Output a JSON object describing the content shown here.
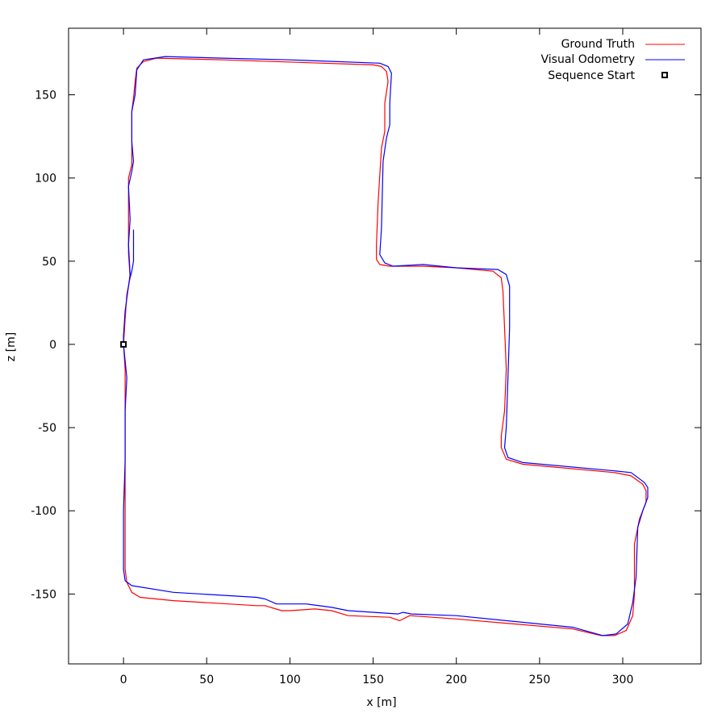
{
  "chart_data": {
    "type": "line",
    "title": "",
    "xlabel": "x [m]",
    "ylabel": "z [m]",
    "xlim": [
      -33,
      347
    ],
    "ylim": [
      -192,
      190
    ],
    "xticks": [
      0,
      50,
      100,
      150,
      200,
      250,
      300
    ],
    "yticks": [
      -150,
      -100,
      -50,
      0,
      50,
      100,
      150
    ],
    "grid": false,
    "legend_position": "top-right",
    "series": [
      {
        "name": "Ground Truth",
        "color": "#ff0000",
        "points": [
          [
            0,
            0
          ],
          [
            1,
            -15
          ],
          [
            1,
            -50
          ],
          [
            1,
            -90
          ],
          [
            1,
            -120
          ],
          [
            1,
            -135
          ],
          [
            2,
            -143
          ],
          [
            5,
            -149
          ],
          [
            10,
            -152
          ],
          [
            30,
            -154
          ],
          [
            80,
            -157
          ],
          [
            85,
            -157
          ],
          [
            95,
            -160
          ],
          [
            100,
            -160
          ],
          [
            115,
            -159
          ],
          [
            125,
            -160
          ],
          [
            135,
            -163
          ],
          [
            160,
            -164
          ],
          [
            166,
            -166
          ],
          [
            172,
            -163
          ],
          [
            200,
            -165
          ],
          [
            270,
            -171
          ],
          [
            287,
            -175
          ],
          [
            295,
            -175
          ],
          [
            302,
            -172
          ],
          [
            306,
            -163
          ],
          [
            307,
            -150
          ],
          [
            307,
            -120
          ],
          [
            310,
            -105
          ],
          [
            314,
            -95
          ],
          [
            314,
            -88
          ],
          [
            312,
            -84
          ],
          [
            305,
            -79
          ],
          [
            295,
            -77
          ],
          [
            240,
            -72
          ],
          [
            230,
            -69
          ],
          [
            227,
            -62
          ],
          [
            227,
            -55
          ],
          [
            229,
            -40
          ],
          [
            230,
            -15
          ],
          [
            229,
            10
          ],
          [
            228,
            32
          ],
          [
            227,
            40
          ],
          [
            222,
            44
          ],
          [
            200,
            46
          ],
          [
            180,
            47
          ],
          [
            160,
            47
          ],
          [
            154,
            48
          ],
          [
            152,
            51
          ],
          [
            152,
            60
          ],
          [
            153,
            85
          ],
          [
            155,
            118
          ],
          [
            157,
            128
          ],
          [
            157,
            145
          ],
          [
            159,
            158
          ],
          [
            158,
            164
          ],
          [
            155,
            167
          ],
          [
            150,
            168
          ],
          [
            60,
            171
          ],
          [
            20,
            172
          ],
          [
            12,
            170
          ],
          [
            8,
            166
          ],
          [
            7,
            158
          ],
          [
            6,
            148
          ],
          [
            5,
            140
          ],
          [
            5,
            125
          ],
          [
            5,
            108
          ],
          [
            3,
            100
          ],
          [
            3,
            80
          ],
          [
            3,
            55
          ],
          [
            4,
            40
          ],
          [
            2,
            30
          ],
          [
            1,
            15
          ],
          [
            0,
            0
          ]
        ]
      },
      {
        "name": "Visual Odometry",
        "color": "#0000ff",
        "points": [
          [
            0,
            0
          ],
          [
            2,
            -20
          ],
          [
            1,
            -40
          ],
          [
            1,
            -70
          ],
          [
            0,
            -100
          ],
          [
            0,
            -125
          ],
          [
            0,
            -135
          ],
          [
            1,
            -142
          ],
          [
            5,
            -145
          ],
          [
            30,
            -149
          ],
          [
            80,
            -152
          ],
          [
            85,
            -153
          ],
          [
            92,
            -156
          ],
          [
            110,
            -156
          ],
          [
            125,
            -158
          ],
          [
            135,
            -160
          ],
          [
            165,
            -162
          ],
          [
            168,
            -161
          ],
          [
            173,
            -162
          ],
          [
            200,
            -163
          ],
          [
            270,
            -170
          ],
          [
            288,
            -175
          ],
          [
            296,
            -174
          ],
          [
            303,
            -168
          ],
          [
            306,
            -155
          ],
          [
            308,
            -140
          ],
          [
            309,
            -110
          ],
          [
            312,
            -100
          ],
          [
            315,
            -92
          ],
          [
            315,
            -86
          ],
          [
            313,
            -83
          ],
          [
            305,
            -77
          ],
          [
            295,
            -76
          ],
          [
            240,
            -71
          ],
          [
            231,
            -68
          ],
          [
            229,
            -62
          ],
          [
            230,
            -50
          ],
          [
            231,
            -20
          ],
          [
            232,
            10
          ],
          [
            232,
            35
          ],
          [
            230,
            42
          ],
          [
            225,
            45
          ],
          [
            200,
            46
          ],
          [
            180,
            48
          ],
          [
            162,
            47
          ],
          [
            157,
            49
          ],
          [
            154,
            54
          ],
          [
            155,
            70
          ],
          [
            156,
            110
          ],
          [
            158,
            124
          ],
          [
            160,
            132
          ],
          [
            160,
            145
          ],
          [
            161,
            163
          ],
          [
            159,
            167
          ],
          [
            154,
            169
          ],
          [
            100,
            171
          ],
          [
            60,
            172
          ],
          [
            25,
            173
          ],
          [
            12,
            171
          ],
          [
            8,
            165
          ],
          [
            7,
            150
          ],
          [
            5,
            140
          ],
          [
            5,
            122
          ],
          [
            6,
            110
          ],
          [
            5,
            104
          ],
          [
            3,
            95
          ],
          [
            4,
            75
          ],
          [
            3,
            60
          ],
          [
            4,
            42
          ],
          [
            3,
            35
          ],
          [
            1,
            20
          ],
          [
            0,
            5
          ],
          [
            0,
            0
          ]
        ]
      },
      {
        "name": "",
        "color": "#0000ff",
        "points": [
          [
            6,
            69
          ],
          [
            6,
            50
          ],
          [
            5,
            44
          ],
          [
            4,
            40
          ]
        ]
      }
    ],
    "markers": [
      {
        "name": "Sequence Start",
        "x": 0,
        "y": 0,
        "color": "#000000",
        "shape": "square"
      }
    ]
  }
}
